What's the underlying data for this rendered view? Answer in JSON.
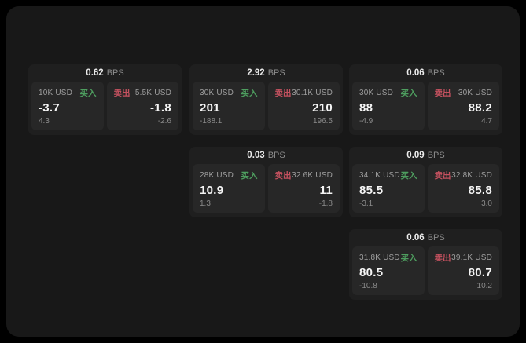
{
  "colors": {
    "buy": "#4e9e5f",
    "sell": "#c4515f",
    "panel_bg": "#272727",
    "card_bg": "#1f1f1f",
    "page_bg": "#181818"
  },
  "cards": [
    {
      "spread": "0.62",
      "unit": "BPS",
      "buy": {
        "label": "买入",
        "amount": "10K USD",
        "price": "-3.7",
        "delta": "4.3"
      },
      "sell": {
        "label": "卖出",
        "amount": "5.5K USD",
        "price": "-1.8",
        "delta": "-2.6"
      }
    },
    {
      "spread": "2.92",
      "unit": "BPS",
      "buy": {
        "label": "买入",
        "amount": "30K USD",
        "price": "201",
        "delta": "-188.1"
      },
      "sell": {
        "label": "卖出",
        "amount": "30.1K USD",
        "price": "210",
        "delta": "196.5"
      }
    },
    {
      "spread": "0.06",
      "unit": "BPS",
      "buy": {
        "label": "买入",
        "amount": "30K USD",
        "price": "88",
        "delta": "-4.9"
      },
      "sell": {
        "label": "卖出",
        "amount": "30K USD",
        "price": "88.2",
        "delta": "4.7"
      }
    },
    {
      "spread": "0.03",
      "unit": "BPS",
      "buy": {
        "label": "买入",
        "amount": "28K USD",
        "price": "10.9",
        "delta": "1.3"
      },
      "sell": {
        "label": "卖出",
        "amount": "32.6K USD",
        "price": "11",
        "delta": "-1.8"
      }
    },
    {
      "spread": "0.09",
      "unit": "BPS",
      "buy": {
        "label": "买入",
        "amount": "34.1K USD",
        "price": "85.5",
        "delta": "-3.1"
      },
      "sell": {
        "label": "卖出",
        "amount": "32.8K USD",
        "price": "85.8",
        "delta": "3.0"
      }
    },
    {
      "spread": "0.06",
      "unit": "BPS",
      "buy": {
        "label": "买入",
        "amount": "31.8K USD",
        "price": "80.5",
        "delta": "-10.8"
      },
      "sell": {
        "label": "卖出",
        "amount": "39.1K USD",
        "price": "80.7",
        "delta": "10.2"
      }
    }
  ]
}
